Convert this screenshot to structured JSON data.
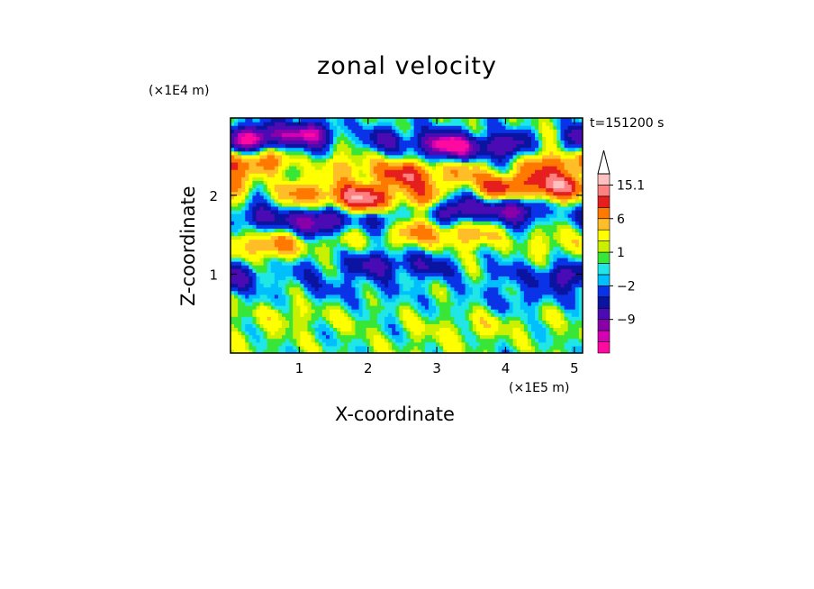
{
  "chart_data": {
    "type": "heatmap",
    "title": "zonal velocity",
    "xlabel": "X-coordinate",
    "ylabel": "Z-coordinate",
    "x_unit": "(×1E5 m)",
    "y_unit": "(×1E4 m)",
    "time_label": "t=151200 s",
    "xlim": [
      0,
      5.12
    ],
    "ylim": [
      0,
      2.98
    ],
    "x_ticks": [
      1,
      2,
      3,
      4,
      5
    ],
    "y_ticks": [
      1,
      2
    ],
    "grid": false,
    "colorbar": {
      "levels": [
        "-12",
        "-10.5",
        "-9",
        "-6",
        "-4",
        "-2",
        "-1",
        "0",
        "1",
        "2",
        "4",
        "6",
        "9",
        "12",
        "15.1"
      ],
      "labels": [
        {
          "value": 15.1,
          "text": "15.1"
        },
        {
          "value": 6,
          "text": "6"
        },
        {
          "value": 1,
          "text": "1"
        },
        {
          "value": -2,
          "text": "-2"
        },
        {
          "value": -9,
          "text": "-9"
        }
      ],
      "colors": [
        "#ff0aa0",
        "#d400b4",
        "#8a00a8",
        "#4a0ab4",
        "#0a14a0",
        "#0a32e6",
        "#00bfff",
        "#20e6e6",
        "#38e638",
        "#c8f000",
        "#ffff00",
        "#ffbe28",
        "#ff7800",
        "#e61e1e",
        "#ff8080",
        "#ffc0c0"
      ]
    },
    "bands": [
      {
        "z": 2.7,
        "value": -12,
        "note": "upper blue band"
      },
      {
        "z": 2.35,
        "value": 9
      },
      {
        "z": 2.05,
        "value": 12
      },
      {
        "z": 1.75,
        "value": -9
      },
      {
        "z": 1.45,
        "value": 6
      },
      {
        "z": 1.05,
        "value": -6
      },
      {
        "z": 0.75,
        "value": -2
      },
      {
        "z": 0.4,
        "value": 2
      },
      {
        "z": 0.1,
        "value": 1
      }
    ]
  }
}
